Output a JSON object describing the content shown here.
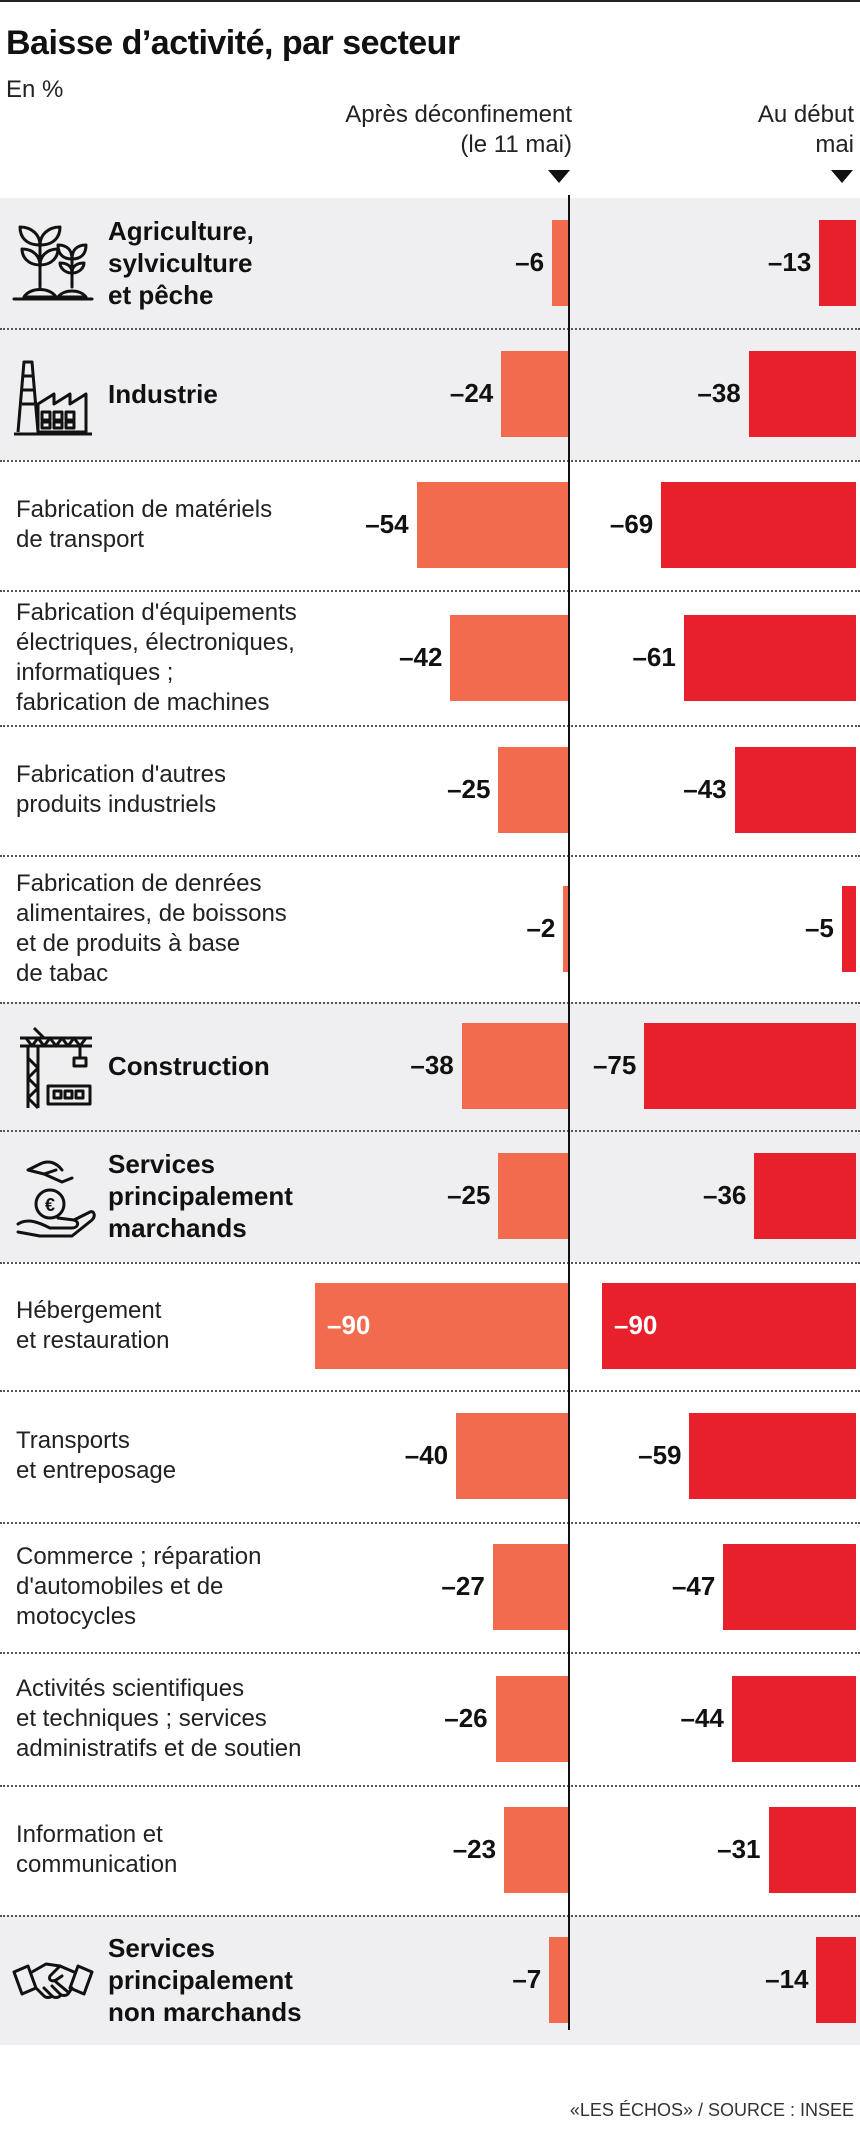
{
  "title": "Baisse d’activité, par secteur",
  "subtitle": "En %",
  "source": "«LES ÉCHOS» / SOURCE : INSEE",
  "colors": {
    "after": "#f26b4e",
    "early": "#e8202b",
    "highlight": "#efeff1"
  },
  "chart_data": {
    "type": "bar",
    "orientation": "horizontal",
    "unit": "%",
    "series": [
      {
        "name": "Après déconfinement (le 11 mai)",
        "name_lines": [
          "Après déconfinement",
          "(le 11 mai)"
        ],
        "color": "#f26b4e",
        "values": [
          -6,
          -24,
          -54,
          -42,
          -25,
          -2,
          -38,
          -25,
          -90,
          -40,
          -27,
          -26,
          -23,
          -7
        ]
      },
      {
        "name": "Au début mai",
        "name_lines": [
          "Au début",
          "mai"
        ],
        "color": "#e8202b",
        "values": [
          -13,
          -38,
          -69,
          -61,
          -43,
          -5,
          -75,
          -36,
          -90,
          -59,
          -47,
          -44,
          -31,
          -14
        ]
      }
    ],
    "categories": [
      {
        "lines": [
          "Agriculture,",
          "sylviculture",
          "et pêche"
        ],
        "group": true,
        "icon": "plant-icon"
      },
      {
        "lines": [
          "Industrie"
        ],
        "group": true,
        "icon": "factory-icon"
      },
      {
        "lines": [
          "Fabrication de matériels",
          "de transport"
        ],
        "group": false
      },
      {
        "lines": [
          "Fabrication d'équipements",
          "électriques, électroniques,",
          "informatiques ;",
          "fabrication de machines"
        ],
        "group": false
      },
      {
        "lines": [
          "Fabrication d'autres",
          "produits industriels"
        ],
        "group": false
      },
      {
        "lines": [
          "Fabrication de denrées",
          "alimentaires, de boissons",
          "et  de produits à base",
          "de tabac"
        ],
        "group": false
      },
      {
        "lines": [
          "Construction"
        ],
        "group": true,
        "icon": "crane-icon"
      },
      {
        "lines": [
          "Services",
          "principalement",
          "marchands"
        ],
        "group": true,
        "icon": "euro-hand-icon"
      },
      {
        "lines": [
          "Hébergement",
          "et restauration"
        ],
        "group": false
      },
      {
        "lines": [
          "Transports",
          "et entreposage"
        ],
        "group": false
      },
      {
        "lines": [
          "Commerce ; réparation",
          "d'automobiles et de",
          "motocycles"
        ],
        "group": false
      },
      {
        "lines": [
          "Activités scientifiques",
          "et techniques ; services",
          "administratifs et de soutien"
        ],
        "group": false
      },
      {
        "lines": [
          "Information et",
          "communication"
        ],
        "group": false
      },
      {
        "lines": [
          "Services",
          "principalement",
          "non marchands"
        ],
        "group": true,
        "icon": "handshake-icon"
      }
    ]
  }
}
